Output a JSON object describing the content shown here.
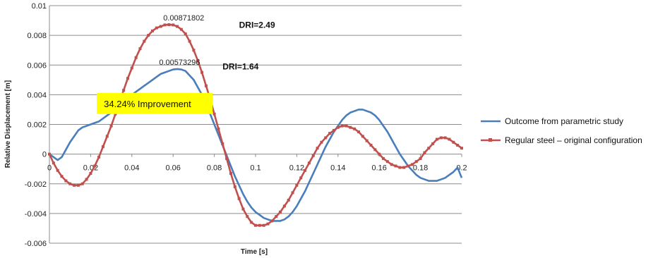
{
  "chart_data": {
    "type": "line",
    "xlabel": "Time [s]",
    "ylabel": "Relative Displacement [m]",
    "xlim": [
      0,
      0.2
    ],
    "ylim": [
      -0.006,
      0.01
    ],
    "x_ticks": [
      0,
      0.02,
      0.04,
      0.06,
      0.08,
      0.1,
      0.12,
      0.14,
      0.16,
      0.18,
      0.2
    ],
    "x_tick_labels": [
      "0",
      "0.02",
      "0.04",
      "0.06",
      "0.08",
      "0.1",
      "0.12",
      "0.14",
      "0.16",
      "0.18",
      "0.2"
    ],
    "y_ticks": [
      -0.006,
      -0.004,
      -0.002,
      0,
      0.002,
      0.004,
      0.006,
      0.008,
      0.01
    ],
    "y_tick_labels": [
      "-0.006",
      "-0.004",
      "-0.002",
      "0",
      "0.002",
      "0.004",
      "0.006",
      "0.008",
      "0.01"
    ],
    "grid": "horizontal",
    "legend_position": "right",
    "series": [
      {
        "name": "Outcome from parametric study",
        "color": "#4a7ebb",
        "markers": false,
        "x": [
          0,
          0.002,
          0.004,
          0.006,
          0.008,
          0.01,
          0.012,
          0.014,
          0.016,
          0.018,
          0.02,
          0.022,
          0.024,
          0.026,
          0.028,
          0.03,
          0.032,
          0.034,
          0.036,
          0.038,
          0.04,
          0.042,
          0.044,
          0.046,
          0.048,
          0.05,
          0.052,
          0.054,
          0.056,
          0.058,
          0.06,
          0.062,
          0.064,
          0.066,
          0.068,
          0.07,
          0.072,
          0.074,
          0.076,
          0.078,
          0.08,
          0.082,
          0.084,
          0.086,
          0.088,
          0.09,
          0.092,
          0.094,
          0.096,
          0.098,
          0.1,
          0.102,
          0.104,
          0.106,
          0.108,
          0.11,
          0.112,
          0.114,
          0.116,
          0.118,
          0.12,
          0.122,
          0.124,
          0.126,
          0.128,
          0.13,
          0.132,
          0.134,
          0.136,
          0.138,
          0.14,
          0.142,
          0.144,
          0.146,
          0.148,
          0.15,
          0.152,
          0.154,
          0.156,
          0.158,
          0.16,
          0.162,
          0.164,
          0.166,
          0.168,
          0.17,
          0.172,
          0.174,
          0.176,
          0.178,
          0.18,
          0.182,
          0.184,
          0.186,
          0.188,
          0.19,
          0.192,
          0.194,
          0.196,
          0.198,
          0.2
        ],
        "y": [
          0,
          -0.0002,
          -0.0004,
          -0.0002,
          0.0003,
          0.0008,
          0.0012,
          0.0016,
          0.0018,
          0.0019,
          0.002,
          0.0021,
          0.0022,
          0.0024,
          0.0026,
          0.0028,
          0.003,
          0.0033,
          0.0035,
          0.0038,
          0.004,
          0.0042,
          0.0044,
          0.0046,
          0.0048,
          0.005,
          0.0052,
          0.0054,
          0.0055,
          0.0056,
          0.0057,
          0.00573,
          0.0057,
          0.0056,
          0.0053,
          0.005,
          0.0045,
          0.004,
          0.0034,
          0.0027,
          0.002,
          0.0013,
          0.0006,
          -0.0001,
          -0.0008,
          -0.0015,
          -0.0021,
          -0.0027,
          -0.0032,
          -0.0036,
          -0.0039,
          -0.0041,
          -0.0043,
          -0.0044,
          -0.0045,
          -0.0045,
          -0.0045,
          -0.0044,
          -0.0042,
          -0.0039,
          -0.0035,
          -0.003,
          -0.0025,
          -0.0019,
          -0.0013,
          -0.0007,
          -0.0001,
          0.0005,
          0.001,
          0.0015,
          0.0019,
          0.0023,
          0.0026,
          0.0028,
          0.0029,
          0.003,
          0.003,
          0.0029,
          0.0028,
          0.0026,
          0.0023,
          0.0019,
          0.0015,
          0.001,
          0.0005,
          0,
          -0.0004,
          -0.0008,
          -0.0011,
          -0.0014,
          -0.0016,
          -0.0017,
          -0.0018,
          -0.0018,
          -0.0018,
          -0.0017,
          -0.0016,
          -0.0014,
          -0.0012,
          -0.0009,
          -0.0016
        ]
      },
      {
        "name": "Regular steel – original configuration",
        "color": "#c0504d",
        "markers": true,
        "x": [
          0,
          0.002,
          0.004,
          0.006,
          0.008,
          0.01,
          0.012,
          0.014,
          0.016,
          0.018,
          0.02,
          0.022,
          0.024,
          0.026,
          0.028,
          0.03,
          0.032,
          0.034,
          0.036,
          0.038,
          0.04,
          0.042,
          0.044,
          0.046,
          0.048,
          0.05,
          0.052,
          0.054,
          0.056,
          0.058,
          0.06,
          0.062,
          0.064,
          0.066,
          0.068,
          0.07,
          0.072,
          0.074,
          0.076,
          0.078,
          0.08,
          0.082,
          0.084,
          0.086,
          0.088,
          0.09,
          0.092,
          0.094,
          0.096,
          0.098,
          0.1,
          0.102,
          0.104,
          0.106,
          0.108,
          0.11,
          0.112,
          0.114,
          0.116,
          0.118,
          0.12,
          0.122,
          0.124,
          0.126,
          0.128,
          0.13,
          0.132,
          0.134,
          0.136,
          0.138,
          0.14,
          0.142,
          0.144,
          0.146,
          0.148,
          0.15,
          0.152,
          0.154,
          0.156,
          0.158,
          0.16,
          0.162,
          0.164,
          0.166,
          0.168,
          0.17,
          0.172,
          0.174,
          0.176,
          0.178,
          0.18,
          0.182,
          0.184,
          0.186,
          0.188,
          0.19,
          0.192,
          0.194,
          0.196,
          0.198,
          0.2
        ],
        "y": [
          0,
          -0.0006,
          -0.0011,
          -0.0015,
          -0.0018,
          -0.002,
          -0.0021,
          -0.0021,
          -0.002,
          -0.0017,
          -0.0013,
          -0.0008,
          -0.0002,
          0.0005,
          0.0012,
          0.0019,
          0.0027,
          0.0035,
          0.0043,
          0.0051,
          0.0058,
          0.0065,
          0.0071,
          0.0076,
          0.008,
          0.0083,
          0.0085,
          0.0086,
          0.0087,
          0.00871802,
          0.0087,
          0.0086,
          0.0084,
          0.0081,
          0.0076,
          0.007,
          0.0063,
          0.0055,
          0.0046,
          0.0037,
          0.0027,
          0.0017,
          0.0007,
          -0.0003,
          -0.0013,
          -0.0022,
          -0.003,
          -0.0037,
          -0.0042,
          -0.0046,
          -0.0048,
          -0.0048,
          -0.0048,
          -0.0047,
          -0.0045,
          -0.0042,
          -0.0039,
          -0.0035,
          -0.0031,
          -0.0026,
          -0.0021,
          -0.0016,
          -0.0011,
          -0.0006,
          -0.0001,
          0.0004,
          0.0008,
          0.0011,
          0.0014,
          0.0016,
          0.0018,
          0.0019,
          0.0019,
          0.0018,
          0.0017,
          0.0015,
          0.0012,
          0.0009,
          0.0006,
          0.0003,
          0,
          -0.0003,
          -0.0005,
          -0.0007,
          -0.0008,
          -0.0009,
          -0.0009,
          -0.0008,
          -0.0007,
          -0.0005,
          -0.0003,
          0.0001,
          0.0004,
          0.0007,
          0.001,
          0.0011,
          0.0011,
          0.001,
          0.0008,
          0.0006,
          0.0004
        ]
      }
    ],
    "annotations": [
      {
        "id": "peak_regular",
        "text": "0.00871802",
        "x": 0.06,
        "y": 0.00871802,
        "style": "small"
      },
      {
        "id": "dri_regular",
        "text": "DRI=2.49",
        "x": 0.092,
        "y": 0.0087,
        "style": "bold"
      },
      {
        "id": "peak_parametric",
        "text": "0.00573296",
        "x": 0.058,
        "y": 0.00573296,
        "style": "small"
      },
      {
        "id": "dri_parametric",
        "text": "DRI=1.64",
        "x": 0.084,
        "y": 0.0059,
        "style": "bold"
      },
      {
        "id": "improvement",
        "text": "34.24% Improvement",
        "x": 0.023,
        "y": 0.0027,
        "style": "highlight",
        "box_color": "#ffff00"
      }
    ]
  }
}
